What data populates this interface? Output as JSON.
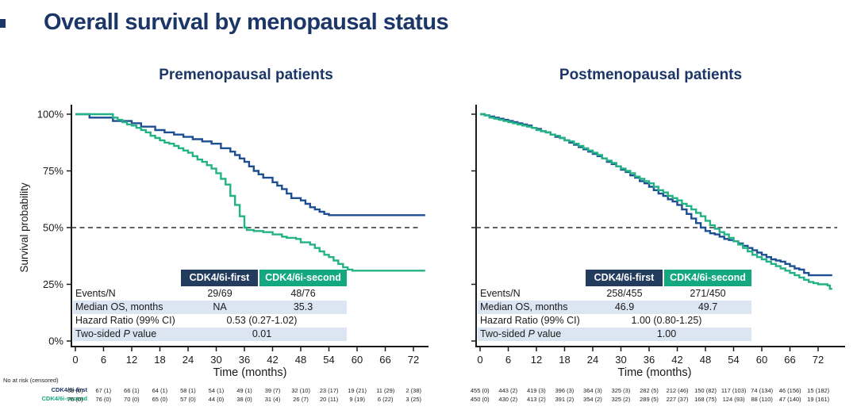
{
  "title": "Overall survival by menopausal status",
  "groups": {
    "first": "CDK4/6i-first",
    "second": "CDK4/6i-second"
  },
  "colors": {
    "navy_text": "#1b3667",
    "navy_header_bg": "#233c5e",
    "green_header_bg": "#13a87f",
    "navy_line": "#1d4e91",
    "green_line": "#22b286",
    "shaded_row_bg": "#dce6f2",
    "axis": "#1a1a1a",
    "reference_dash": "#2f2f2f"
  },
  "risk_header": "No at risk (censored)",
  "panels": [
    {
      "stats": {
        "rows": [
          {
            "label": "Events/N",
            "values": [
              "29/69",
              "48/76"
            ]
          },
          {
            "label": "Median OS, months",
            "values": [
              "NA",
              "35.3"
            ]
          },
          {
            "label": "Hazard Ratio (99% CI)",
            "merged": "0.53 (0.27-1.02)"
          },
          {
            "label_prefix": "Two-sided ",
            "label_italic": "P",
            "label_suffix": " value",
            "merged": "0.01"
          }
        ]
      },
      "risk": {
        "first": [
          "69 (0)",
          "67 (1)",
          "66 (1)",
          "64 (1)",
          "58 (1)",
          "54 (1)",
          "49 (1)",
          "39 (7)",
          "32 (10)",
          "23 (17)",
          "19 (21)",
          "11 (29)",
          "2 (38)"
        ],
        "second": [
          "76 (0)",
          "76 (0)",
          "70 (0)",
          "65 (0)",
          "57 (0)",
          "44 (0)",
          "38 (0)",
          "31 (4)",
          "26 (7)",
          "20 (11)",
          "9 (19)",
          "6 (22)",
          "3 (25)"
        ]
      }
    },
    {
      "stats": {
        "rows": [
          {
            "label": "Events/N",
            "values": [
              "258/455",
              "271/450"
            ]
          },
          {
            "label": "Median OS, months",
            "values": [
              "46.9",
              "49.7"
            ]
          },
          {
            "label": "Hazard Ratio (99% CI)",
            "merged": "1.00 (0.80-1.25)"
          },
          {
            "label_prefix": "Two-sided ",
            "label_italic": "P",
            "label_suffix": " value",
            "merged": "1.00"
          }
        ]
      },
      "risk": {
        "first": [
          "455 (0)",
          "443 (2)",
          "419 (3)",
          "396 (3)",
          "364 (3)",
          "325 (3)",
          "282 (5)",
          "212 (46)",
          "150 (82)",
          "117 (103)",
          "74 (134)",
          "46 (156)",
          "15 (182)"
        ],
        "second": [
          "450 (0)",
          "430 (2)",
          "413 (2)",
          "391 (2)",
          "354 (2)",
          "325 (2)",
          "289 (5)",
          "227 (37)",
          "168 (75)",
          "124 (93)",
          "88 (110)",
          "47 (140)",
          "19 (161)"
        ]
      }
    }
  ],
  "chart_data": [
    {
      "type": "line",
      "subtype": "kaplan-meier-step",
      "title": "Premenopausal patients",
      "xlabel": "Time (months)",
      "ylabel": "Survival probability",
      "xlim": [
        0,
        76
      ],
      "ylim": [
        0,
        100
      ],
      "x_ticks": [
        0,
        6,
        12,
        18,
        24,
        30,
        36,
        42,
        48,
        54,
        60,
        66,
        72
      ],
      "y_ticks_pct": [
        0,
        25,
        50,
        75,
        100
      ],
      "reference_line_pct": 50,
      "show_y_labels": true,
      "series": [
        {
          "name": "CDK4/6i-first",
          "color": "#1d4e91",
          "points": [
            [
              0,
              100
            ],
            [
              3,
              98.5
            ],
            [
              8,
              97
            ],
            [
              12,
              96
            ],
            [
              14,
              94.5
            ],
            [
              17,
              93
            ],
            [
              19,
              92
            ],
            [
              21,
              91
            ],
            [
              23,
              90
            ],
            [
              25,
              89
            ],
            [
              27,
              88
            ],
            [
              29,
              87
            ],
            [
              31,
              85
            ],
            [
              33,
              83.5
            ],
            [
              34,
              82
            ],
            [
              35,
              80.5
            ],
            [
              36,
              79
            ],
            [
              37,
              77
            ],
            [
              38,
              75
            ],
            [
              39,
              73.5
            ],
            [
              40,
              72
            ],
            [
              42,
              70
            ],
            [
              43,
              68.5
            ],
            [
              44,
              67
            ],
            [
              45,
              65
            ],
            [
              46,
              63
            ],
            [
              48,
              62
            ],
            [
              49,
              60.5
            ],
            [
              50,
              59
            ],
            [
              51,
              58
            ],
            [
              52,
              57
            ],
            [
              53,
              56
            ],
            [
              54,
              55.5
            ],
            [
              74.5,
              55.5
            ]
          ]
        },
        {
          "name": "CDK4/6i-second",
          "color": "#22b286",
          "points": [
            [
              0,
              100
            ],
            [
              8,
              98.5
            ],
            [
              9,
              97.5
            ],
            [
              10,
              96.5
            ],
            [
              11,
              95.5
            ],
            [
              12,
              95
            ],
            [
              13,
              94
            ],
            [
              14,
              93
            ],
            [
              15,
              92
            ],
            [
              16,
              90.5
            ],
            [
              17,
              89.5
            ],
            [
              18,
              88.5
            ],
            [
              19,
              87.5
            ],
            [
              20,
              87
            ],
            [
              21,
              86
            ],
            [
              22,
              85
            ],
            [
              23,
              84
            ],
            [
              24,
              83
            ],
            [
              25,
              81.5
            ],
            [
              26,
              80
            ],
            [
              27,
              79
            ],
            [
              28,
              77.5
            ],
            [
              29,
              76
            ],
            [
              30,
              74
            ],
            [
              31,
              71.5
            ],
            [
              32,
              69
            ],
            [
              33,
              64
            ],
            [
              34,
              60
            ],
            [
              35,
              55
            ],
            [
              36,
              50
            ],
            [
              36.5,
              49
            ],
            [
              38,
              48.5
            ],
            [
              40,
              48
            ],
            [
              42,
              47
            ],
            [
              44,
              46
            ],
            [
              45,
              45.5
            ],
            [
              47,
              45
            ],
            [
              48,
              43.5
            ],
            [
              50,
              42.5
            ],
            [
              51,
              41
            ],
            [
              52,
              39.5
            ],
            [
              53,
              38
            ],
            [
              54,
              37
            ],
            [
              55,
              35.5
            ],
            [
              56,
              34
            ],
            [
              57,
              32.5
            ],
            [
              58,
              31.5
            ],
            [
              59,
              31
            ],
            [
              74.5,
              31
            ]
          ]
        }
      ]
    },
    {
      "type": "line",
      "subtype": "kaplan-meier-step",
      "title": "Postmenopausal patients",
      "xlabel": "Time (months)",
      "ylabel": "Survival probability",
      "xlim": [
        0,
        76
      ],
      "ylim": [
        0,
        100
      ],
      "x_ticks": [
        0,
        6,
        12,
        18,
        24,
        30,
        36,
        42,
        48,
        54,
        60,
        66,
        72
      ],
      "y_ticks_pct": [
        0,
        25,
        50,
        75,
        100
      ],
      "reference_line_pct": 50,
      "show_y_labels": false,
      "series": [
        {
          "name": "CDK4/6i-first",
          "color": "#1d4e91",
          "points": [
            [
              0,
              100
            ],
            [
              1,
              99.5
            ],
            [
              2,
              99
            ],
            [
              3,
              98.5
            ],
            [
              4,
              98
            ],
            [
              5,
              97.5
            ],
            [
              6,
              97
            ],
            [
              7,
              96.5
            ],
            [
              8,
              96
            ],
            [
              9,
              95.5
            ],
            [
              10,
              95
            ],
            [
              11,
              94
            ],
            [
              12,
              93.5
            ],
            [
              13,
              92.5
            ],
            [
              14,
              92
            ],
            [
              15,
              91
            ],
            [
              16,
              90
            ],
            [
              17,
              89.5
            ],
            [
              18,
              88.5
            ],
            [
              19,
              87.5
            ],
            [
              20,
              86.5
            ],
            [
              21,
              85.5
            ],
            [
              22,
              84.5
            ],
            [
              23,
              83.5
            ],
            [
              24,
              82.5
            ],
            [
              25,
              81.5
            ],
            [
              26,
              80.5
            ],
            [
              27,
              79
            ],
            [
              28,
              78
            ],
            [
              29,
              77
            ],
            [
              30,
              75.5
            ],
            [
              31,
              74.5
            ],
            [
              32,
              73
            ],
            [
              33,
              72
            ],
            [
              34,
              70.5
            ],
            [
              35,
              69.5
            ],
            [
              36,
              68
            ],
            [
              37,
              66.5
            ],
            [
              38,
              65
            ],
            [
              39,
              64
            ],
            [
              40,
              62.5
            ],
            [
              41,
              61.5
            ],
            [
              42,
              60
            ],
            [
              43,
              58
            ],
            [
              44,
              56
            ],
            [
              45,
              54
            ],
            [
              46,
              52
            ],
            [
              47,
              50
            ],
            [
              48,
              48.5
            ],
            [
              49,
              47.5
            ],
            [
              50,
              47
            ],
            [
              51,
              46
            ],
            [
              52,
              45
            ],
            [
              53,
              44.5
            ],
            [
              54,
              44
            ],
            [
              55,
              43
            ],
            [
              56,
              42
            ],
            [
              57,
              41
            ],
            [
              58,
              40
            ],
            [
              59,
              39
            ],
            [
              60,
              38
            ],
            [
              61,
              37
            ],
            [
              62,
              36
            ],
            [
              63,
              35.5
            ],
            [
              64,
              35
            ],
            [
              65,
              34
            ],
            [
              66,
              33
            ],
            [
              67,
              32
            ],
            [
              68,
              31.5
            ],
            [
              69,
              30
            ],
            [
              70,
              29
            ],
            [
              75,
              29
            ]
          ]
        },
        {
          "name": "CDK4/6i-second",
          "color": "#22b286",
          "points": [
            [
              0,
              100
            ],
            [
              1,
              99.5
            ],
            [
              2,
              98.5
            ],
            [
              3,
              98
            ],
            [
              4,
              97.5
            ],
            [
              5,
              97
            ],
            [
              6,
              96.5
            ],
            [
              7,
              96
            ],
            [
              8,
              95.5
            ],
            [
              9,
              95
            ],
            [
              10,
              94.5
            ],
            [
              11,
              94
            ],
            [
              12,
              93
            ],
            [
              13,
              92.5
            ],
            [
              14,
              92
            ],
            [
              15,
              91
            ],
            [
              16,
              90.5
            ],
            [
              17,
              89.5
            ],
            [
              18,
              88.5
            ],
            [
              19,
              88
            ],
            [
              20,
              87
            ],
            [
              21,
              86
            ],
            [
              22,
              85
            ],
            [
              23,
              84
            ],
            [
              24,
              83
            ],
            [
              25,
              82
            ],
            [
              26,
              80.5
            ],
            [
              27,
              79.5
            ],
            [
              28,
              78.5
            ],
            [
              29,
              77
            ],
            [
              30,
              76
            ],
            [
              31,
              75
            ],
            [
              32,
              74
            ],
            [
              33,
              72.5
            ],
            [
              34,
              71.5
            ],
            [
              35,
              70.5
            ],
            [
              36,
              69.5
            ],
            [
              37,
              68
            ],
            [
              38,
              66.5
            ],
            [
              39,
              65.5
            ],
            [
              40,
              64
            ],
            [
              41,
              63
            ],
            [
              42,
              62
            ],
            [
              43,
              60.5
            ],
            [
              44,
              59.5
            ],
            [
              45,
              58
            ],
            [
              46,
              56.5
            ],
            [
              47,
              55
            ],
            [
              48,
              53
            ],
            [
              49,
              51
            ],
            [
              50,
              49.5
            ],
            [
              51,
              48
            ],
            [
              52,
              47
            ],
            [
              53,
              45.5
            ],
            [
              54,
              44
            ],
            [
              55,
              42.5
            ],
            [
              56,
              41
            ],
            [
              57,
              39.5
            ],
            [
              58,
              38
            ],
            [
              59,
              37
            ],
            [
              60,
              36
            ],
            [
              61,
              35
            ],
            [
              62,
              34
            ],
            [
              63,
              33
            ],
            [
              64,
              32
            ],
            [
              65,
              31
            ],
            [
              66,
              30
            ],
            [
              67,
              29
            ],
            [
              68,
              28
            ],
            [
              69,
              27
            ],
            [
              70,
              26
            ],
            [
              71,
              25.5
            ],
            [
              72,
              25
            ],
            [
              74,
              24.5
            ],
            [
              74.5,
              23
            ],
            [
              75,
              23
            ]
          ]
        }
      ]
    }
  ]
}
